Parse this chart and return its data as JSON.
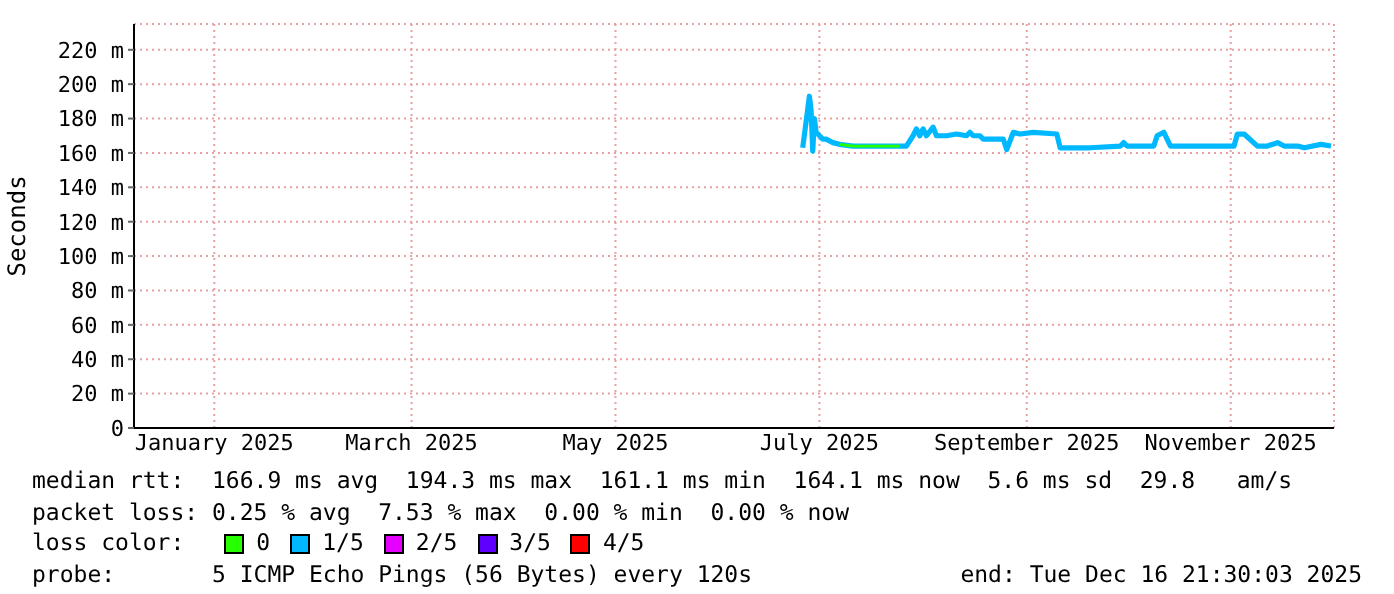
{
  "chart_data": {
    "type": "line",
    "ylabel": "Seconds",
    "legend_title": "loss color:",
    "legend": "bottom",
    "grid": true,
    "marker": "none",
    "line_style": "solid",
    "xlim": [
      "2024-12-23",
      "2025-12-16T21:30"
    ],
    "ylim": [
      0,
      235
    ],
    "xticks": [
      {
        "value": "2025-01-16",
        "label": "January 2025"
      },
      {
        "value": "2025-03-16",
        "label": "March 2025"
      },
      {
        "value": "2025-05-16",
        "label": "May 2025"
      },
      {
        "value": "2025-07-16",
        "label": "July 2025"
      },
      {
        "value": "2025-09-16",
        "label": "September 2025"
      },
      {
        "value": "2025-11-16",
        "label": "November 2025"
      }
    ],
    "yticks": [
      0,
      {
        "value": 20,
        "label": "20 m"
      },
      {
        "value": 40,
        "label": "40 m"
      },
      {
        "value": 60,
        "label": "60 m"
      },
      {
        "value": 80,
        "label": "80 m"
      },
      {
        "value": 100,
        "label": "100 m"
      },
      {
        "value": 120,
        "label": "120 m"
      },
      {
        "value": 140,
        "label": "140 m"
      },
      {
        "value": 160,
        "label": "160 m"
      },
      {
        "value": 180,
        "label": "180 m"
      },
      {
        "value": 200,
        "label": "200 m"
      },
      {
        "value": 220,
        "label": "220 m"
      }
    ],
    "series": [
      {
        "name": "0",
        "color": "#26ff00",
        "x": [
          "2025-07-22",
          "2025-07-26",
          "2025-08-02",
          "2025-08-09"
        ],
        "values": [
          165,
          164,
          164,
          164
        ]
      },
      {
        "name": "1/5",
        "color": "#00b8ff",
        "x": [
          "2025-07-11",
          "2025-07-12",
          "2025-07-13",
          "2025-07-13T12:00",
          "2025-07-14",
          "2025-07-14T12:00",
          "2025-07-15",
          "2025-07-17",
          "2025-07-18",
          "2025-07-20",
          "2025-07-22",
          "2025-07-26",
          "2025-08-02",
          "2025-08-11",
          "2025-08-13",
          "2025-08-14",
          "2025-08-15",
          "2025-08-16",
          "2025-08-17",
          "2025-08-19",
          "2025-08-20",
          "2025-08-23",
          "2025-08-26",
          "2025-08-29",
          "2025-08-30",
          "2025-08-31",
          "2025-09-02",
          "2025-09-03",
          "2025-09-09",
          "2025-09-10",
          "2025-09-12",
          "2025-09-14",
          "2025-09-18",
          "2025-09-25",
          "2025-09-26",
          "2025-10-05",
          "2025-10-14",
          "2025-10-15",
          "2025-10-16",
          "2025-10-24",
          "2025-10-25",
          "2025-10-27",
          "2025-10-29",
          "2025-11-17",
          "2025-11-18",
          "2025-11-20",
          "2025-11-24",
          "2025-11-27",
          "2025-11-30",
          "2025-12-02",
          "2025-12-04",
          "2025-12-06",
          "2025-12-08",
          "2025-12-13",
          "2025-12-16"
        ],
        "values": [
          163,
          178,
          193,
          185,
          161,
          180,
          172,
          168,
          168,
          166,
          165,
          164,
          164,
          164,
          170,
          174,
          170,
          174,
          170,
          175,
          170,
          170,
          171,
          170,
          172,
          170,
          170,
          168,
          168,
          162,
          172,
          171,
          172,
          171,
          163,
          163,
          164,
          166,
          164,
          164,
          170,
          172,
          164,
          164,
          171,
          171,
          164,
          164,
          166,
          164,
          164,
          164,
          163,
          165,
          164
        ]
      },
      {
        "name": "2/5",
        "color": "#e600ff"
      },
      {
        "name": "3/5",
        "color": "#5f00ff"
      },
      {
        "name": "4/5",
        "color": "#ff0000"
      }
    ],
    "annotations": [
      "median rtt:  166.9 ms avg  194.3 ms max  161.1 ms min  164.1 ms now  5.6 ms sd  29.8   am/s",
      "packet loss: 0.25 % avg  7.53 % max  0.00 % min  0.00 % now",
      "probe:       5 ICMP Echo Pings (56 Bytes) every 120s",
      "end: Tue Dec 16 21:30:03 2025"
    ]
  }
}
